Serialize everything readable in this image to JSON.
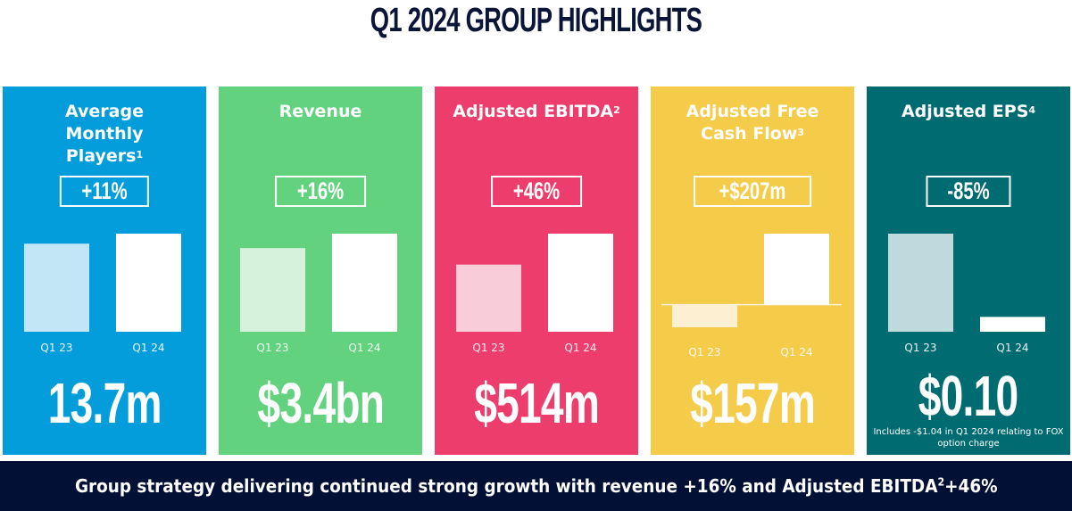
{
  "title": "Q1 2024 GROUP HIGHLIGHTS",
  "colors": {
    "title": "#0a1538",
    "banner_bg": "#031035",
    "text": "#ffffff"
  },
  "cards": [
    {
      "title": "Average Monthly Players",
      "footnote": "1",
      "change": "+11%",
      "value": "13.7m",
      "bg": "#039ddb",
      "prior_bar_color": "#c2e6f6",
      "note": ""
    },
    {
      "title": "Revenue",
      "footnote": "",
      "change": "+16%",
      "value": "$3.4bn",
      "bg": "#62d27f",
      "prior_bar_color": "#d6f2dd",
      "note": ""
    },
    {
      "title": "Adjusted EBITDA",
      "footnote": "2",
      "change": "+46%",
      "value": "$514m",
      "bg": "#ec3d6c",
      "prior_bar_color": "#f8cdd9",
      "note": ""
    },
    {
      "title": "Adjusted Free Cash Flow",
      "footnote": "3",
      "change": "+$207m",
      "value": "$157m",
      "bg": "#f5cb4a",
      "prior_bar_color": "#fcefd2",
      "note": ""
    },
    {
      "title": "Adjusted EPS",
      "footnote": "4",
      "change": "-85%",
      "value": "$0.10",
      "bg": "#006b71",
      "prior_bar_color": "#bfdadc",
      "note": "Includes -$1.04 in Q1 2024 relating to FOX option charge"
    }
  ],
  "banner": {
    "text_before": "Group strategy delivering continued strong growth with revenue +16% and Adjusted EBITDA",
    "footnote": "2",
    "text_after": " +46%"
  },
  "chart_data": [
    {
      "type": "bar",
      "title": "Average Monthly Players",
      "categories": [
        "Q1 23",
        "Q1 24"
      ],
      "values": [
        12.3,
        13.7
      ],
      "unit": "m",
      "change_label": "+11%",
      "ylim": [
        0,
        13.7
      ]
    },
    {
      "type": "bar",
      "title": "Revenue",
      "categories": [
        "Q1 23",
        "Q1 24"
      ],
      "values": [
        2.9,
        3.4
      ],
      "unit": "$bn",
      "change_label": "+16%",
      "ylim": [
        0,
        3.4
      ]
    },
    {
      "type": "bar",
      "title": "Adjusted EBITDA",
      "categories": [
        "Q1 23",
        "Q1 24"
      ],
      "values": [
        352,
        514
      ],
      "unit": "$m",
      "change_label": "+46%",
      "ylim": [
        0,
        514
      ]
    },
    {
      "type": "bar",
      "title": "Adjusted Free Cash Flow",
      "categories": [
        "Q1 23",
        "Q1 24"
      ],
      "values": [
        -50,
        157
      ],
      "unit": "$m",
      "change_label": "+$207m",
      "ylim": [
        -50,
        157
      ]
    },
    {
      "type": "bar",
      "title": "Adjusted EPS",
      "categories": [
        "Q1 23",
        "Q1 24"
      ],
      "values": [
        0.66,
        0.1
      ],
      "unit": "$",
      "change_label": "-85%",
      "ylim": [
        0,
        0.66
      ]
    }
  ]
}
